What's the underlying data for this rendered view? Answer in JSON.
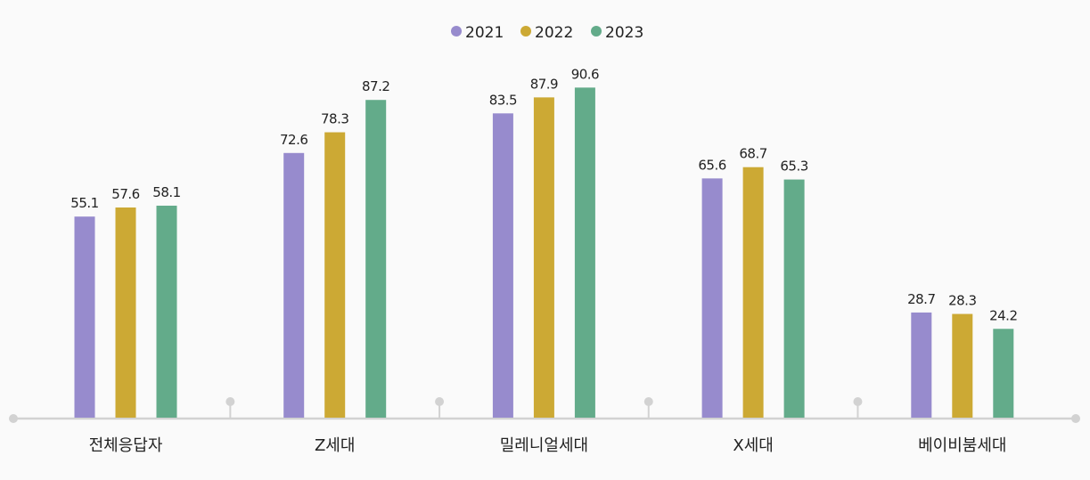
{
  "chart_data": {
    "type": "bar",
    "title": "",
    "xlabel": "",
    "ylabel": "",
    "ylim": [
      0,
      100
    ],
    "grid": false,
    "legend_position": "top-center",
    "categories": [
      "전체응답자",
      "Z세대",
      "밀레니얼세대",
      "X세대",
      "베이비붐세대"
    ],
    "series": [
      {
        "name": "2021",
        "color": "#978bcd",
        "values": [
          55.1,
          72.6,
          83.5,
          65.6,
          28.7
        ]
      },
      {
        "name": "2022",
        "color": "#cca934",
        "values": [
          57.6,
          78.3,
          87.9,
          68.7,
          28.3
        ]
      },
      {
        "name": "2023",
        "color": "#63ab8a",
        "values": [
          58.1,
          87.2,
          90.6,
          65.3,
          24.2
        ]
      }
    ]
  }
}
